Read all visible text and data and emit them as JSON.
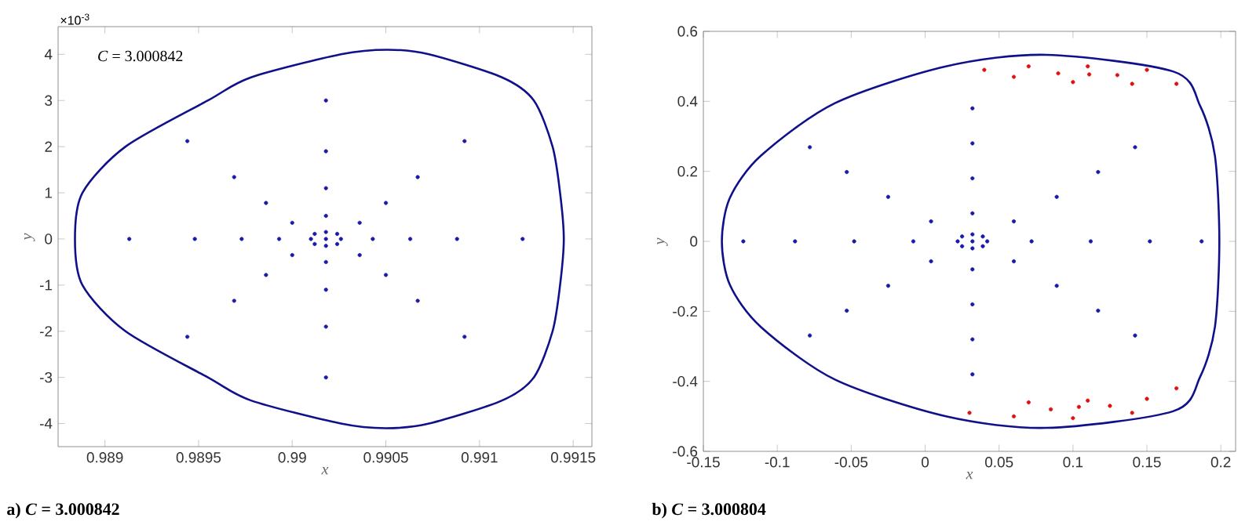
{
  "chart_data": [
    {
      "type": "scatter",
      "title": "a) *C* = 3.000842",
      "xlabel": "x",
      "ylabel": "y",
      "annotations": [
        "*C* = 3.000842",
        "×10$^{-3}$"
      ],
      "xlim": [
        0.98875,
        0.9916
      ],
      "ylim": [
        -4.5,
        4.6
      ],
      "xticks": [
        0.989,
        0.9895,
        0.99,
        0.9905,
        0.991,
        0.9915
      ],
      "yticks": [
        -4,
        -3,
        -2,
        -1,
        0,
        1,
        2,
        3,
        4
      ],
      "series": [
        {
          "color": "#1a1aa8",
          "x": [
            0.99018,
            0.99026,
            0.9901,
            0.99018,
            0.99018,
            0.99024,
            0.99012,
            0.99024,
            0.99012,
            0.99043,
            0.98993,
            0.99018,
            0.99018,
            0.99036,
            0.99,
            0.99036,
            0.99,
            0.99063,
            0.98973,
            0.99018,
            0.99018,
            0.9905,
            0.98986,
            0.9905,
            0.98986,
            0.99088,
            0.98948,
            0.99018,
            0.99018,
            0.99067,
            0.98969,
            0.99067,
            0.98969,
            0.99123,
            0.98913,
            0.99018,
            0.99018,
            0.99092,
            0.98944,
            0.99092,
            0.98944
          ],
          "values": [
            0,
            0,
            0,
            0.15,
            -0.15,
            0.11,
            0.11,
            -0.11,
            -0.11,
            0,
            0,
            0.5,
            -0.5,
            0.35,
            0.35,
            -0.35,
            -0.35,
            0,
            0,
            1.1,
            -1.1,
            0.78,
            0.78,
            -0.78,
            -0.78,
            0,
            0,
            1.9,
            -1.9,
            1.34,
            1.34,
            -1.34,
            -1.34,
            0,
            0,
            3,
            -3,
            2.12,
            2.12,
            -2.12,
            -2.12
          ]
        }
      ]
    },
    {
      "type": "scatter",
      "title": "b) *C* = 3.000804",
      "xlabel": "x",
      "ylabel": "y",
      "xlim": [
        -0.15,
        0.21
      ],
      "ylim": [
        -0.6,
        0.6
      ],
      "xticks": [
        -0.15,
        -0.1,
        -0.05,
        0,
        0.05,
        0.1,
        0.15,
        0.2
      ],
      "yticks": [
        -0.6,
        -0.4,
        -0.2,
        0,
        0.2,
        0.4,
        0.6
      ],
      "series": [
        {
          "color": "#1a1aa8",
          "x": [
            0.032,
            0.042,
            0.022,
            0.032,
            0.032,
            0.039,
            0.025,
            0.039,
            0.025,
            0.072,
            -0.008,
            0.032,
            0.032,
            0.06,
            0.004,
            0.06,
            0.004,
            0.112,
            -0.048,
            0.032,
            0.032,
            0.089,
            -0.025,
            0.089,
            -0.025,
            0.152,
            -0.088,
            0.032,
            0.032,
            0.117,
            -0.053,
            0.117,
            -0.053,
            0.187,
            -0.123,
            0.032,
            0.032,
            0.142,
            -0.078,
            0.142,
            -0.078
          ],
          "values": [
            0,
            0,
            0,
            0.02,
            -0.02,
            0.014,
            0.014,
            -0.014,
            -0.014,
            0,
            0,
            0.08,
            -0.08,
            0.057,
            0.057,
            -0.057,
            -0.057,
            0,
            0,
            0.18,
            -0.18,
            0.127,
            0.127,
            -0.127,
            -0.127,
            0,
            0,
            0.28,
            -0.28,
            0.198,
            0.198,
            -0.198,
            -0.198,
            0,
            0,
            0.38,
            -0.38,
            0.269,
            0.269,
            -0.269,
            -0.269
          ]
        },
        {
          "color": "#e01010",
          "x": [
            0.04,
            0.07,
            0.11,
            0.15,
            0.17,
            0.14,
            0.1,
            0.06,
            0.111,
            0.09,
            0.13,
            0.03,
            0.06,
            0.1,
            0.14,
            0.17,
            0.15,
            0.11,
            0.07,
            0.104,
            0.085,
            0.125
          ],
          "values": [
            0.49,
            0.5,
            0.5,
            0.49,
            0.45,
            0.45,
            0.455,
            0.47,
            0.477,
            0.48,
            0.475,
            -0.49,
            -0.5,
            -0.505,
            -0.49,
            -0.42,
            -0.45,
            -0.455,
            -0.46,
            -0.473,
            -0.48,
            -0.47
          ]
        }
      ]
    }
  ]
}
